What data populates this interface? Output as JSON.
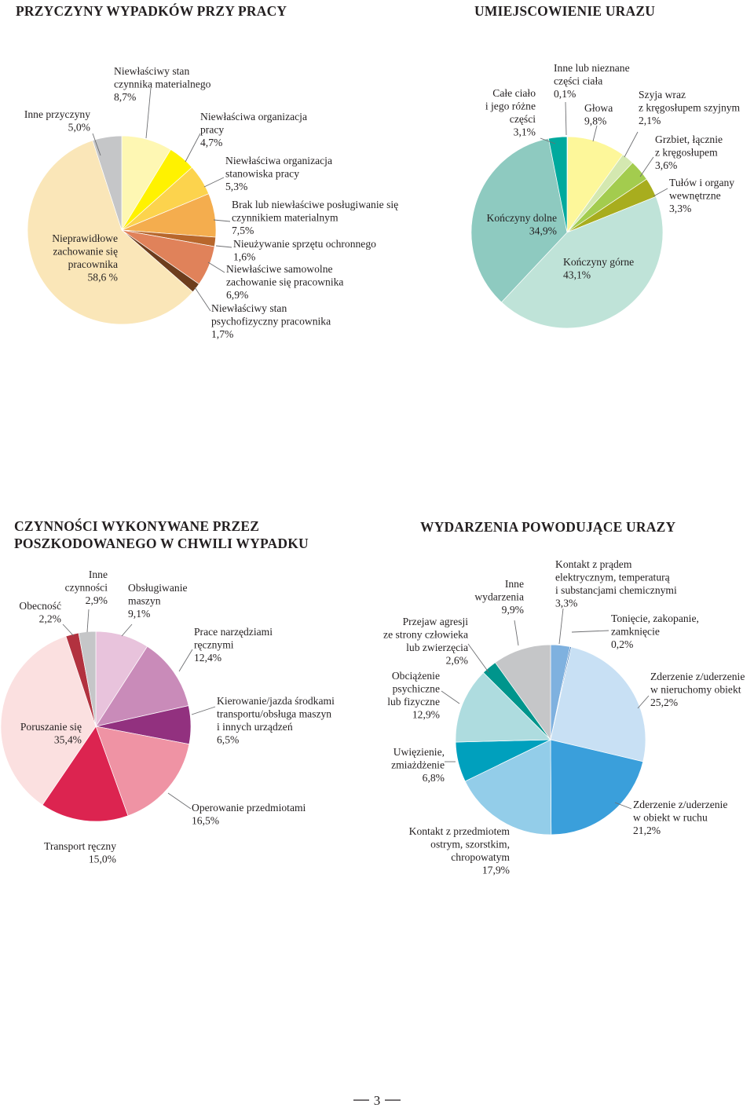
{
  "page": {
    "number": "3"
  },
  "chart_data": [
    {
      "id": "causes",
      "type": "pie",
      "title": "PRZYCZYNY WYPADKÓW PRZY PRACY",
      "slices": [
        {
          "label": [
            "Niewłaściwy stan",
            "czynnika materialnego",
            "8,7%"
          ],
          "value": 8.7,
          "color": "#fef7b3"
        },
        {
          "label": [
            "Niewłaściwa organizacja",
            "pracy",
            "4,7%"
          ],
          "value": 4.7,
          "color": "#fff200"
        },
        {
          "label": [
            "Niewłaściwa organizacja",
            "stanowiska pracy",
            "5,3%"
          ],
          "value": 5.3,
          "color": "#fcd34d"
        },
        {
          "label": [
            "Brak lub niewłaściwe posługiwanie się",
            "czynnikiem materialnym",
            "7,5%"
          ],
          "value": 7.5,
          "color": "#f4ad4e"
        },
        {
          "label": [
            "Nieużywanie sprzętu ochronnego",
            "1,6%"
          ],
          "value": 1.6,
          "color": "#b8672c"
        },
        {
          "label": [
            "Niewłaściwe samowolne",
            "zachowanie się pracownika",
            "6,9%"
          ],
          "value": 6.9,
          "color": "#e0825a"
        },
        {
          "label": [
            "Niewłaściwy stan",
            "psychofizyczny pracownika",
            "1,7%"
          ],
          "value": 1.7,
          "color": "#6d3d1d"
        },
        {
          "label": [
            "Nieprawidłowe",
            "zachowanie się",
            "pracownika",
            "58,6 %"
          ],
          "value": 58.6,
          "color": "#fae6b8"
        },
        {
          "label": [
            "Inne przyczyny",
            "5,0%"
          ],
          "value": 5.0,
          "color": "#c5c6c8"
        }
      ]
    },
    {
      "id": "injury-location",
      "type": "pie",
      "title": "UMIEJSCOWIENIE URAZU",
      "slices": [
        {
          "label": [
            "Inne lub nieznane",
            "części ciała",
            "0,1%"
          ],
          "value": 0.1,
          "color": "#ffffff"
        },
        {
          "label": [
            "Głowa",
            "9,8%"
          ],
          "value": 9.8,
          "color": "#fdf79a"
        },
        {
          "label": [
            "Szyja wraz",
            "z kręgosłupem szyjnym",
            "2,1%"
          ],
          "value": 2.1,
          "color": "#d4e8b0"
        },
        {
          "label": [
            "Grzbiet, łącznie",
            "z kręgosłupem",
            "3,6%"
          ],
          "value": 3.6,
          "color": "#a3cc4e"
        },
        {
          "label": [
            "Tułów i organy",
            "wewnętrzne",
            "3,3%"
          ],
          "value": 3.3,
          "color": "#a8ad1e"
        },
        {
          "label": [
            "Kończyny górne",
            "43,1%"
          ],
          "value": 43.1,
          "color": "#bfe3d8"
        },
        {
          "label": [
            "Kończyny dolne",
            "34,9%"
          ],
          "value": 34.9,
          "color": "#8ecac0"
        },
        {
          "label": [
            "Całe ciało",
            "i jego różne",
            "części",
            "3,1%"
          ],
          "value": 3.1,
          "color": "#00a99d"
        }
      ]
    },
    {
      "id": "activities",
      "type": "pie",
      "title": [
        "CZYNNOŚCI WYKONYWANE PRZEZ",
        "POSZKODOWANEGO W CHWILI WYPADKU"
      ],
      "slices": [
        {
          "label": [
            "Obsługiwanie",
            "maszyn",
            "9,1%"
          ],
          "value": 9.1,
          "color": "#e8c3dc"
        },
        {
          "label": [
            "Prace narzędziami",
            "ręcznymi",
            "12,4%"
          ],
          "value": 12.4,
          "color": "#c98bb9"
        },
        {
          "label": [
            "Kierowanie/jazda środkami",
            "transportu/obsługa maszyn",
            "i innych urządzeń",
            "6,5%"
          ],
          "value": 6.5,
          "color": "#92317f"
        },
        {
          "label": [
            "Operowanie przedmiotami",
            "16,5%"
          ],
          "value": 16.5,
          "color": "#ef93a4"
        },
        {
          "label": [
            "Transport ręczny",
            "15,0%"
          ],
          "value": 15.0,
          "color": "#dc2450"
        },
        {
          "label": [
            "Poruszanie się",
            "35,4%"
          ],
          "value": 35.4,
          "color": "#fbe0e0"
        },
        {
          "label": [
            "Obecność",
            "2,2%"
          ],
          "value": 2.2,
          "color": "#b2323f"
        },
        {
          "label": [
            "Inne",
            "czynności",
            "2,9%"
          ],
          "value": 2.9,
          "color": "#c5c6c8"
        }
      ]
    },
    {
      "id": "events",
      "type": "pie",
      "title": "WYDARZENIA POWODUJĄCE URAZY",
      "slices": [
        {
          "label": [
            "Kontakt z prądem",
            "elektrycznym, temperaturą",
            "i substancjami chemicznymi",
            "3,3%"
          ],
          "value": 3.3,
          "color": "#7fb1df"
        },
        {
          "label": [
            "Tonięcie, zakopanie,",
            "zamknięcie",
            "0,2%"
          ],
          "value": 0.2,
          "color": "#1d5fa8"
        },
        {
          "label": [
            "Zderzenie z/uderzenie",
            "w nieruchomy obiekt",
            "25,2%"
          ],
          "value": 25.2,
          "color": "#c8e0f4"
        },
        {
          "label": [
            "Zderzenie z/uderzenie",
            "w obiekt w ruchu",
            "21,2%"
          ],
          "value": 21.2,
          "color": "#3a9fdb"
        },
        {
          "label": [
            "Kontakt z przedmiotem",
            "ostrym, szorstkim,",
            "chropowatym",
            "17,9%"
          ],
          "value": 17.9,
          "color": "#93cde9"
        },
        {
          "label": [
            "Uwięzienie,",
            "zmiażdżenie",
            "6,8%"
          ],
          "value": 6.8,
          "color": "#00a0bd"
        },
        {
          "label": [
            "Obciążenie",
            "psychiczne",
            "lub fizyczne",
            "12,9%"
          ],
          "value": 12.9,
          "color": "#aedcdf"
        },
        {
          "label": [
            "Przejaw agresji",
            "ze strony człowieka",
            "lub zwierzęcia",
            "2,6%"
          ],
          "value": 2.6,
          "color": "#00958c"
        },
        {
          "label": [
            "Inne",
            "wydarzenia",
            "9,9%"
          ],
          "value": 9.9,
          "color": "#c5c6c8"
        }
      ]
    }
  ]
}
